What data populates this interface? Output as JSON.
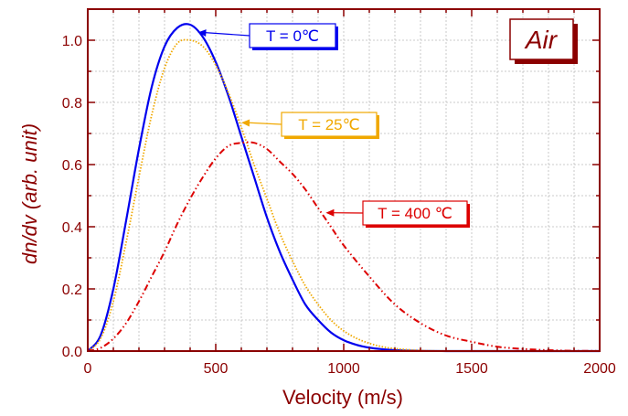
{
  "chart_data": {
    "type": "line",
    "title": "",
    "xlabel": "Velocity (m/s)",
    "ylabel": "dn/dv (arb. unit)",
    "xlim": [
      0,
      2000
    ],
    "ylim": [
      0,
      1.1
    ],
    "xticks": [
      0,
      500,
      1000,
      1500,
      2000
    ],
    "xtick_labels": [
      "0",
      "500",
      "1000",
      "1500",
      "2000"
    ],
    "yticks": [
      0.0,
      0.2,
      0.4,
      0.6,
      0.8,
      1.0
    ],
    "ytick_labels": [
      "0.0",
      "0.2",
      "0.4",
      "0.6",
      "0.8",
      "1.0"
    ],
    "grid": true,
    "annotations": [
      {
        "text": "Air",
        "style": "boxed-title"
      }
    ],
    "series": [
      {
        "name": "T = 0℃",
        "color": "#0000ee",
        "line_style": "solid",
        "x": [
          0,
          50,
          100,
          150,
          200,
          250,
          300,
          350,
          400,
          450,
          500,
          550,
          600,
          650,
          700,
          750,
          800,
          850,
          900,
          950,
          1000,
          1050,
          1100,
          1150,
          1200,
          1300,
          1400,
          1500,
          1600,
          1800,
          2000
        ],
        "y": [
          0,
          0.05,
          0.2,
          0.42,
          0.65,
          0.85,
          0.98,
          1.04,
          1.05,
          1.01,
          0.93,
          0.82,
          0.69,
          0.56,
          0.43,
          0.32,
          0.23,
          0.15,
          0.1,
          0.06,
          0.035,
          0.02,
          0.011,
          0.006,
          0.003,
          0.0007,
          0.0001,
          0,
          0,
          0,
          0
        ]
      },
      {
        "name": "T = 25℃",
        "color": "#f0a800",
        "line_style": "dotted",
        "x": [
          0,
          50,
          100,
          150,
          200,
          250,
          300,
          350,
          400,
          450,
          500,
          550,
          600,
          650,
          700,
          750,
          800,
          850,
          900,
          950,
          1000,
          1050,
          1100,
          1150,
          1200,
          1300,
          1400,
          1500,
          1600,
          1800,
          2000
        ],
        "y": [
          0,
          0.04,
          0.16,
          0.35,
          0.56,
          0.76,
          0.91,
          0.99,
          1.0,
          0.98,
          0.92,
          0.83,
          0.72,
          0.6,
          0.49,
          0.38,
          0.29,
          0.21,
          0.15,
          0.1,
          0.065,
          0.041,
          0.025,
          0.014,
          0.008,
          0.002,
          0.0005,
          0.0001,
          0,
          0,
          0
        ]
      },
      {
        "name": "T = 400 ℃",
        "color": "#dd0000",
        "line_style": "dash-dot-dot",
        "x": [
          0,
          50,
          100,
          150,
          200,
          250,
          300,
          350,
          400,
          450,
          500,
          550,
          600,
          650,
          700,
          750,
          800,
          850,
          900,
          950,
          1000,
          1100,
          1200,
          1300,
          1400,
          1500,
          1600,
          1700,
          1800,
          1900,
          2000
        ],
        "y": [
          0,
          0.01,
          0.04,
          0.09,
          0.16,
          0.24,
          0.32,
          0.41,
          0.49,
          0.56,
          0.62,
          0.66,
          0.67,
          0.67,
          0.65,
          0.61,
          0.57,
          0.52,
          0.46,
          0.4,
          0.34,
          0.24,
          0.15,
          0.09,
          0.05,
          0.03,
          0.014,
          0.007,
          0.003,
          0.001,
          0.0005
        ]
      }
    ],
    "labels": [
      {
        "series": 0,
        "text": "T = 0℃",
        "arrow_to": [
          430,
          1.025
        ]
      },
      {
        "series": 1,
        "text": "T = 25℃",
        "arrow_to": [
          600,
          0.735
        ]
      },
      {
        "series": 2,
        "text": "T = 400 ℃",
        "arrow_to": [
          930,
          0.445
        ]
      }
    ]
  }
}
